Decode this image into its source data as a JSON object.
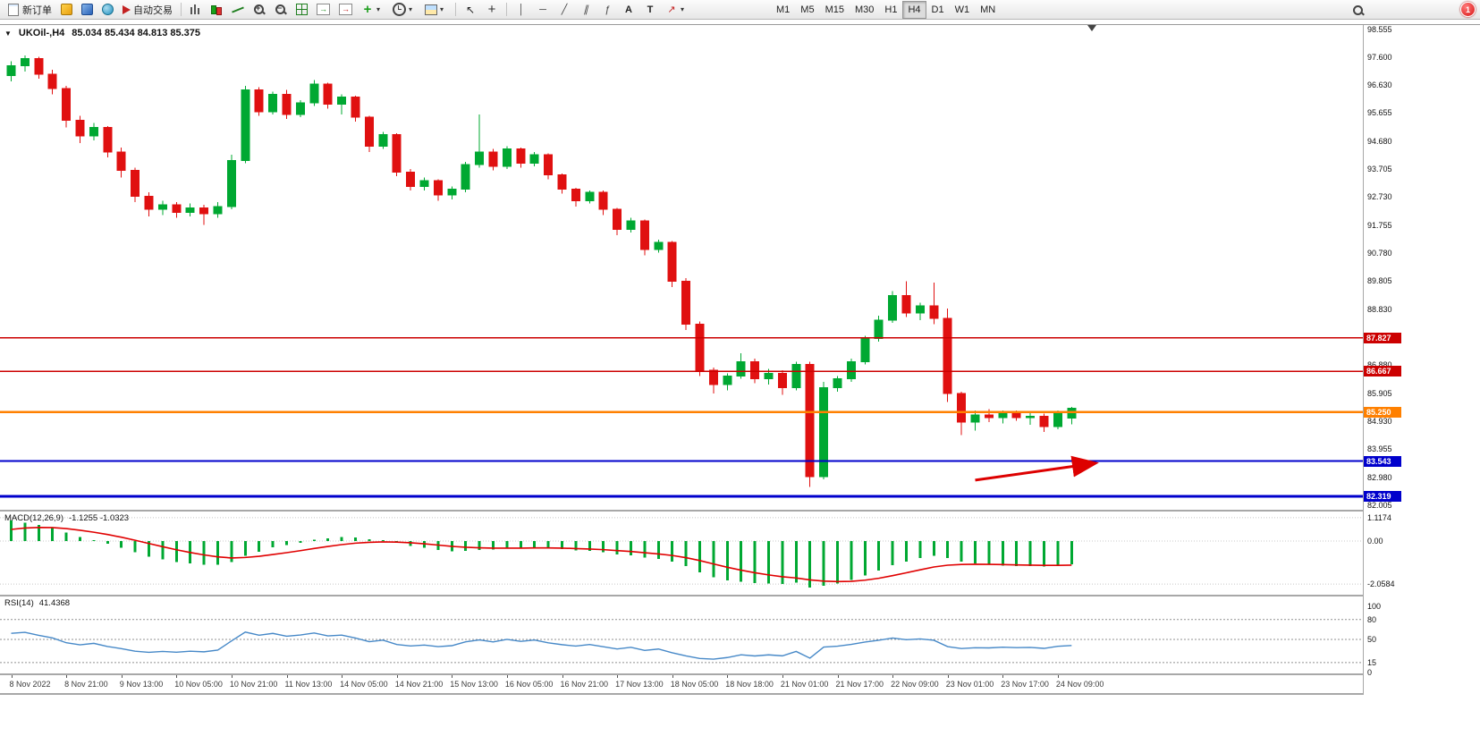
{
  "toolbar": {
    "new_order": {
      "label": "新订单"
    },
    "autotrading": {
      "label": "自动交易"
    },
    "timeframes": {
      "items": [
        "M1",
        "M5",
        "M15",
        "M30",
        "H1",
        "H4",
        "D1",
        "W1",
        "MN"
      ],
      "active": "H4"
    },
    "notification": {
      "count": "1"
    },
    "icon_buttons": [
      "new-order",
      "metaeditor",
      "options",
      "community",
      "autotrading",
      "bar-chart",
      "candlestick-chart",
      "line-chart",
      "zoom-in",
      "zoom-out",
      "tile-windows",
      "auto-scroll",
      "chart-shift",
      "add-indicator",
      "periods",
      "templates",
      "cursor",
      "crosshair",
      "vertical-line",
      "horizontal-line",
      "trendline",
      "equidistant-channel",
      "fibonacci",
      "text",
      "text-label",
      "arrows",
      "search",
      "notification-badge"
    ]
  },
  "chart": {
    "symbol": "UKOil-,H4",
    "ohlc": "85.034 85.434 84.813 85.375"
  },
  "chart_data": [
    {
      "type": "candlestick",
      "symbol": "UKOil-",
      "timeframe": "H4",
      "ohlc_display": {
        "open": "85.034",
        "high": "85.434",
        "low": "84.813",
        "close": "85.375"
      },
      "up_color": "#00a832",
      "down_color": "#e01010",
      "ylim": [
        81.85,
        98.71
      ],
      "y_ticks": [
        "98.555",
        "97.600",
        "96.630",
        "95.655",
        "94.680",
        "93.705",
        "92.730",
        "91.755",
        "90.780",
        "89.805",
        "88.830",
        "87.855",
        "86.880",
        "85.905",
        "84.930",
        "83.955",
        "82.980",
        "82.005"
      ],
      "x_labels": [
        "8 Nov 2022",
        "8 Nov 21:00",
        "9 Nov 13:00",
        "10 Nov 05:00",
        "10 Nov 21:00",
        "11 Nov 13:00",
        "14 Nov 05:00",
        "14 Nov 21:00",
        "15 Nov 13:00",
        "16 Nov 05:00",
        "16 Nov 21:00",
        "17 Nov 13:00",
        "18 Nov 05:00",
        "18 Nov 18:00",
        "21 Nov 01:00",
        "21 Nov 17:00",
        "22 Nov 09:00",
        "23 Nov 01:00",
        "23 Nov 17:00",
        "24 Nov 09:00"
      ],
      "candles_per_label": 4,
      "hlines": [
        {
          "price": 87.827,
          "label": "87.827",
          "color": "#cc0000",
          "width": 1.5
        },
        {
          "price": 86.667,
          "label": "86.667",
          "color": "#cc0000",
          "width": 1.5
        },
        {
          "price": 85.25,
          "label": "85.250",
          "color": "#ff8000",
          "width": 2.5
        },
        {
          "price": 83.543,
          "label": "83.543",
          "color": "#0000cc",
          "width": 2
        },
        {
          "price": 82.319,
          "label": "82.319",
          "color": "#0000cc",
          "width": 3
        }
      ],
      "arrow": {
        "from_index": 70,
        "from_price": 82.88,
        "to_index": 78.6,
        "to_price": 83.46,
        "color": "#dd0000"
      },
      "candles": [
        [
          96.95,
          97.45,
          96.75,
          97.3
        ],
        [
          97.3,
          97.66,
          97.1,
          97.55
        ],
        [
          97.55,
          97.6,
          96.85,
          97.0
        ],
        [
          97.0,
          97.15,
          96.3,
          96.5
        ],
        [
          96.5,
          96.6,
          95.15,
          95.4
        ],
        [
          95.4,
          95.55,
          94.6,
          94.85
        ],
        [
          94.85,
          95.3,
          94.7,
          95.15
        ],
        [
          95.15,
          95.2,
          94.1,
          94.3
        ],
        [
          94.3,
          94.45,
          93.4,
          93.65
        ],
        [
          93.65,
          93.75,
          92.55,
          92.75
        ],
        [
          92.75,
          92.9,
          92.05,
          92.3
        ],
        [
          92.3,
          92.6,
          92.1,
          92.45
        ],
        [
          92.45,
          92.55,
          92.0,
          92.2
        ],
        [
          92.2,
          92.5,
          92.05,
          92.35
        ],
        [
          92.35,
          92.45,
          91.75,
          92.15
        ],
        [
          92.15,
          92.55,
          92.0,
          92.4
        ],
        [
          92.4,
          94.2,
          92.3,
          94.0
        ],
        [
          94.0,
          96.6,
          93.9,
          96.45
        ],
        [
          96.45,
          96.55,
          95.55,
          95.7
        ],
        [
          95.7,
          96.4,
          95.6,
          96.3
        ],
        [
          96.3,
          96.45,
          95.45,
          95.6
        ],
        [
          95.6,
          96.1,
          95.5,
          96.0
        ],
        [
          96.0,
          96.8,
          95.9,
          96.65
        ],
        [
          96.65,
          96.7,
          95.8,
          95.95
        ],
        [
          95.95,
          96.3,
          95.6,
          96.2
        ],
        [
          96.2,
          96.25,
          95.35,
          95.5
        ],
        [
          95.5,
          95.55,
          94.3,
          94.5
        ],
        [
          94.5,
          95.0,
          94.4,
          94.9
        ],
        [
          94.9,
          94.95,
          93.45,
          93.6
        ],
        [
          93.6,
          93.7,
          92.95,
          93.1
        ],
        [
          93.1,
          93.4,
          92.95,
          93.3
        ],
        [
          93.3,
          93.35,
          92.6,
          92.8
        ],
        [
          92.8,
          93.1,
          92.65,
          93.0
        ],
        [
          93.0,
          93.95,
          92.9,
          93.85
        ],
        [
          93.85,
          95.6,
          93.75,
          94.3
        ],
        [
          94.3,
          94.4,
          93.65,
          93.8
        ],
        [
          93.8,
          94.5,
          93.7,
          94.4
        ],
        [
          94.4,
          94.45,
          93.75,
          93.9
        ],
        [
          93.9,
          94.3,
          93.8,
          94.2
        ],
        [
          94.2,
          94.25,
          93.35,
          93.5
        ],
        [
          93.5,
          93.55,
          92.85,
          93.0
        ],
        [
          93.0,
          93.05,
          92.4,
          92.6
        ],
        [
          92.6,
          92.95,
          92.5,
          92.9
        ],
        [
          92.9,
          92.95,
          92.1,
          92.3
        ],
        [
          92.3,
          92.35,
          91.4,
          91.6
        ],
        [
          91.6,
          92.0,
          91.5,
          91.9
        ],
        [
          91.9,
          91.95,
          90.7,
          90.9
        ],
        [
          90.9,
          91.25,
          90.8,
          91.15
        ],
        [
          91.15,
          91.2,
          89.6,
          89.8
        ],
        [
          89.8,
          89.9,
          88.1,
          88.3
        ],
        [
          88.3,
          88.4,
          86.5,
          86.7
        ],
        [
          86.7,
          86.8,
          85.9,
          86.2
        ],
        [
          86.2,
          86.6,
          86.0,
          86.5
        ],
        [
          86.5,
          87.3,
          86.4,
          87.0
        ],
        [
          87.0,
          87.1,
          86.25,
          86.4
        ],
        [
          86.4,
          86.75,
          86.2,
          86.6
        ],
        [
          86.6,
          86.7,
          85.85,
          86.1
        ],
        [
          86.1,
          87.0,
          86.0,
          86.9
        ],
        [
          86.9,
          87.0,
          82.65,
          83.0
        ],
        [
          83.0,
          86.3,
          82.9,
          86.1
        ],
        [
          86.1,
          86.5,
          85.95,
          86.4
        ],
        [
          86.4,
          87.1,
          86.3,
          87.0
        ],
        [
          87.0,
          87.9,
          86.9,
          87.8
        ],
        [
          87.8,
          88.6,
          87.7,
          88.45
        ],
        [
          88.45,
          89.45,
          88.35,
          89.3
        ],
        [
          89.3,
          89.8,
          88.55,
          88.7
        ],
        [
          88.7,
          89.05,
          88.45,
          88.95
        ],
        [
          88.95,
          89.75,
          88.3,
          88.5
        ],
        [
          88.5,
          88.85,
          85.6,
          85.9
        ],
        [
          85.9,
          85.95,
          84.45,
          84.9
        ],
        [
          84.9,
          85.3,
          84.6,
          85.15
        ],
        [
          85.15,
          85.35,
          84.9,
          85.05
        ],
        [
          85.05,
          85.3,
          84.85,
          85.25
        ],
        [
          85.25,
          85.3,
          84.95,
          85.05
        ],
        [
          85.05,
          85.25,
          84.8,
          85.1
        ],
        [
          85.1,
          85.2,
          84.55,
          84.75
        ],
        [
          84.75,
          85.3,
          84.65,
          85.2
        ],
        [
          85.034,
          85.434,
          84.813,
          85.375
        ]
      ]
    },
    {
      "type": "macd",
      "label": "MACD(12,26,9)",
      "values_display": "-1.1255 -1.0323",
      "params": [
        12,
        26,
        9
      ],
      "y_ticks": [
        "1.1174",
        "0.00",
        "-2.0584"
      ],
      "histogram_color": "#00a832",
      "signal_color": "#e00000"
    },
    {
      "type": "rsi",
      "label": "RSI(14)",
      "value_display": "41.4368",
      "period": 14,
      "y_ticks": [
        "100",
        "80",
        "50",
        "15",
        "0"
      ],
      "levels": [
        80,
        50,
        15
      ],
      "line_color": "#4789c8"
    }
  ]
}
